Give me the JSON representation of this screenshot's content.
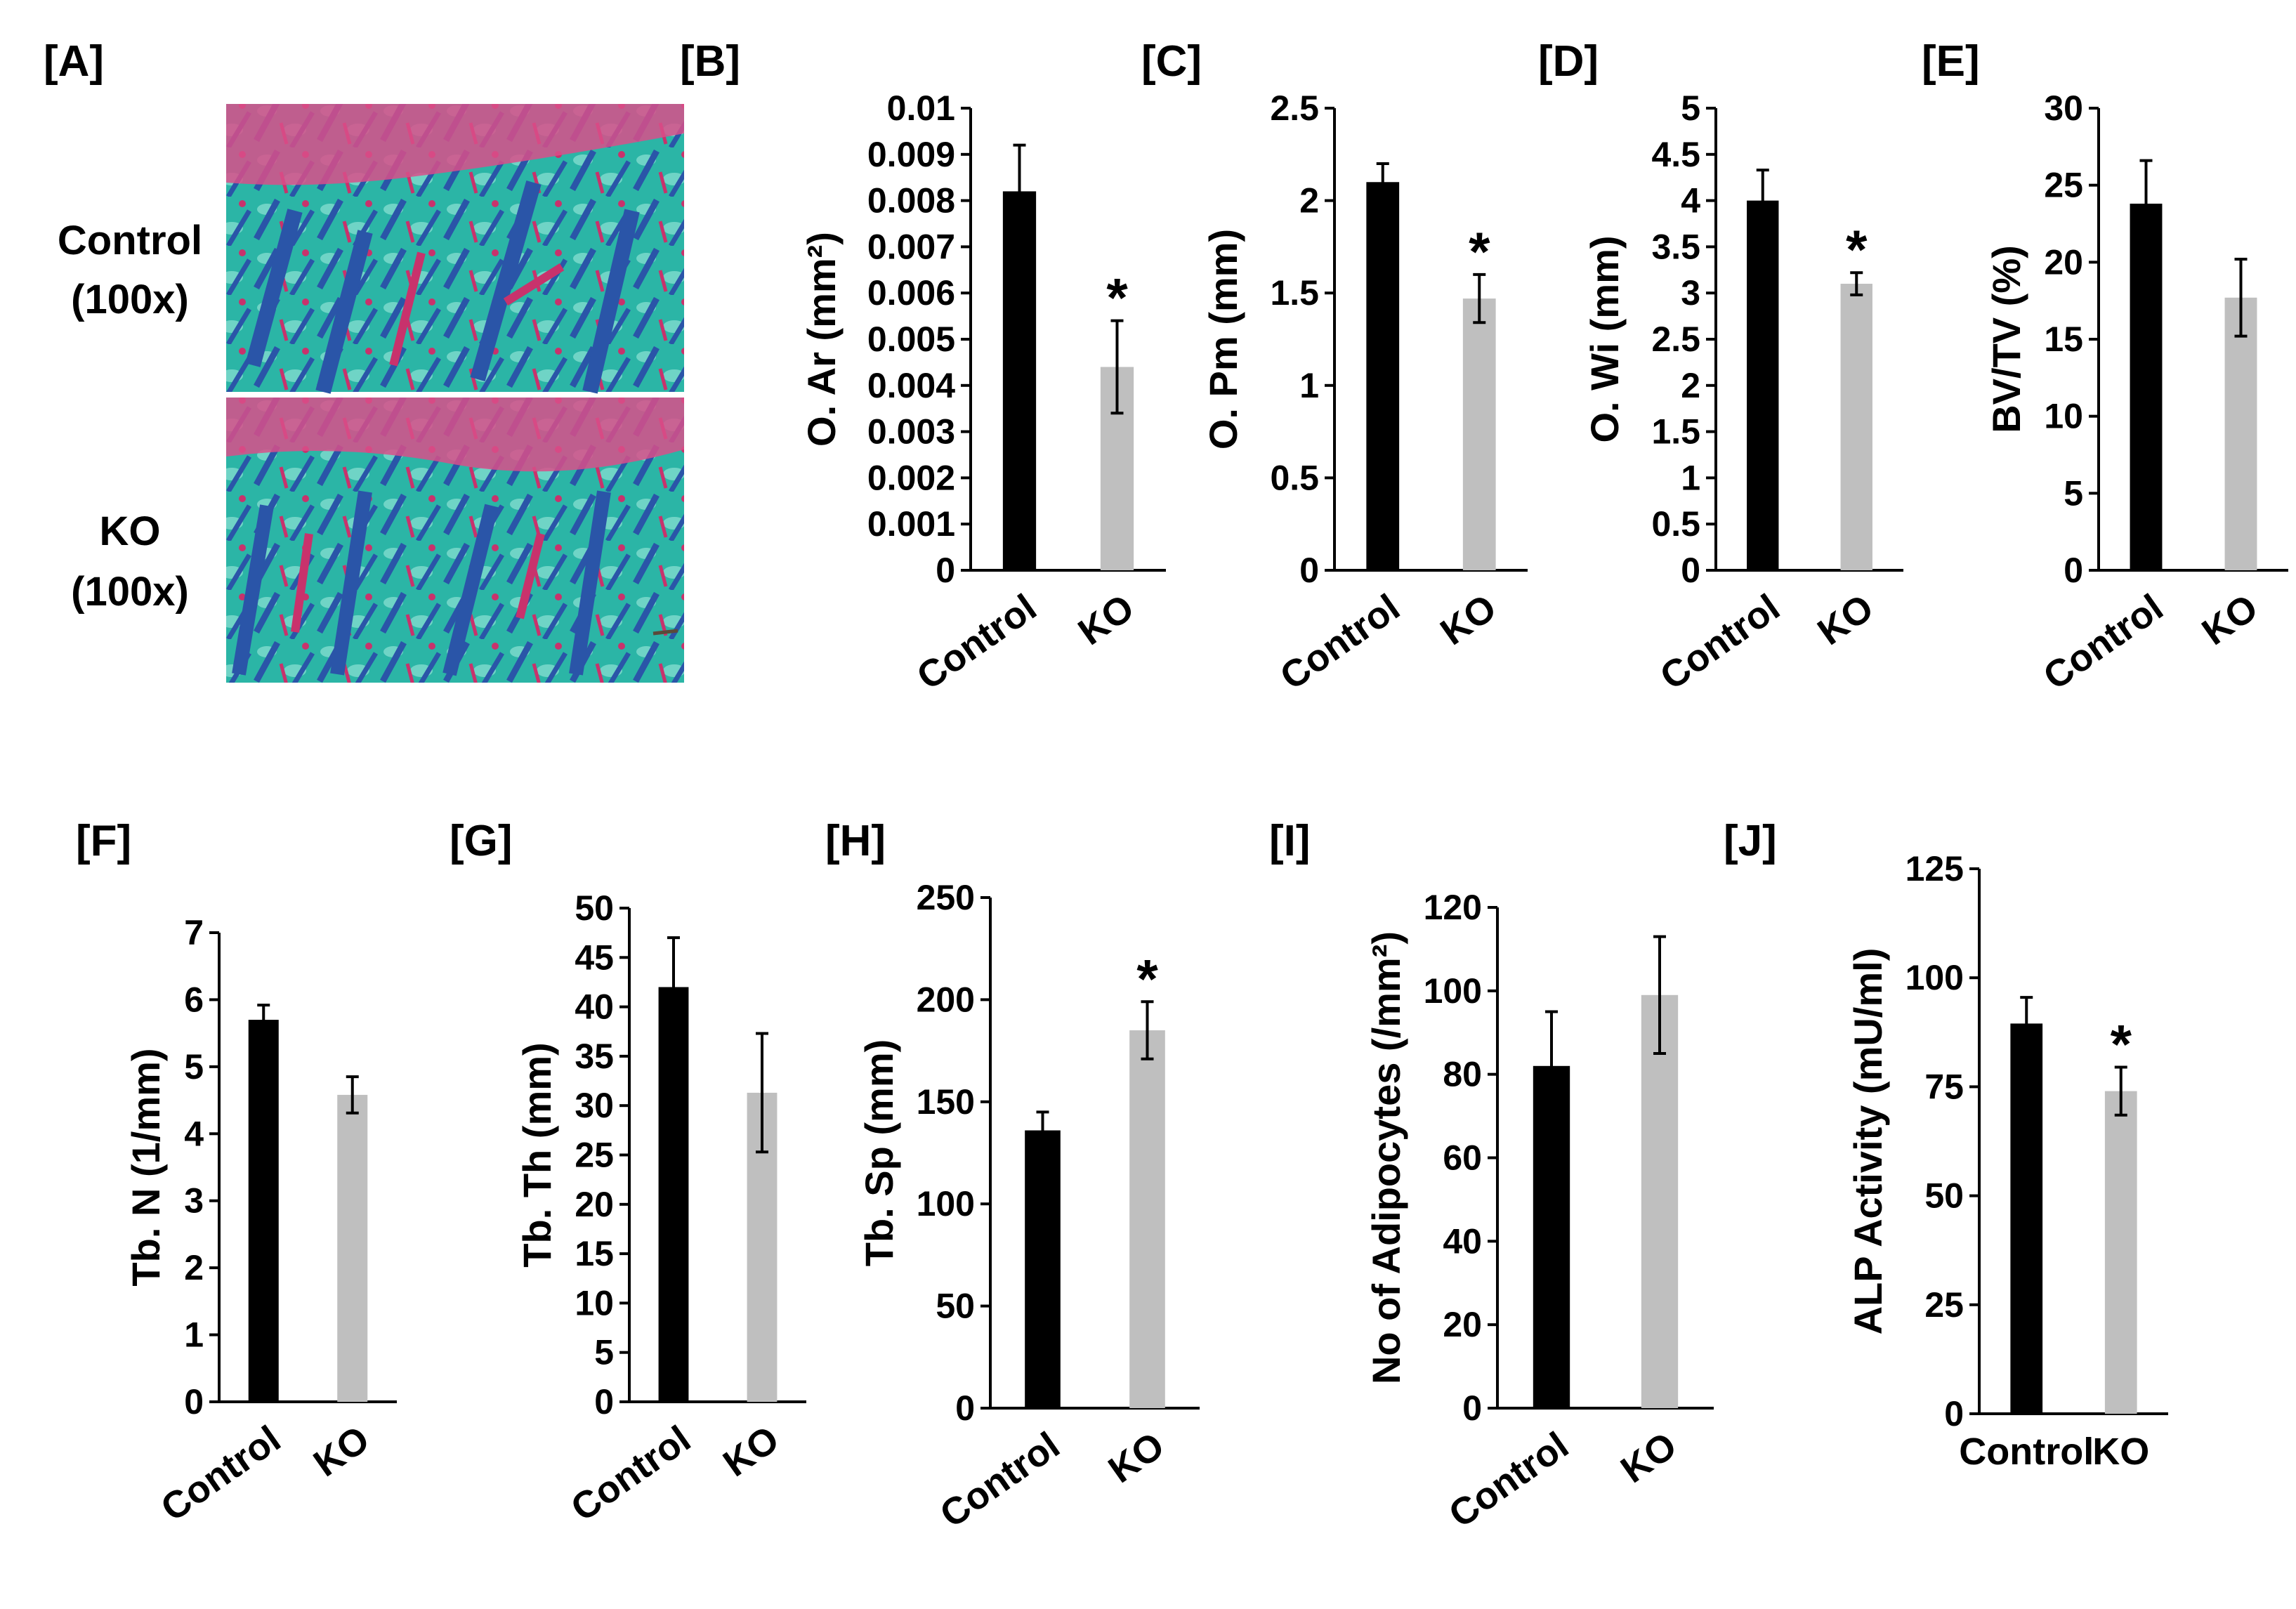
{
  "figure": {
    "panel_a": {
      "label": "[A]",
      "rows": [
        {
          "name": "Control",
          "magnification": "(100x)"
        },
        {
          "name": "KO",
          "magnification": "(100x)"
        }
      ]
    }
  },
  "colors": {
    "control_bar": "#000000",
    "ko_bar": "#bfbfbf",
    "stain_green": "#2bb5a6",
    "stain_blue": "#2a55a8",
    "stain_red": "#c8326c"
  },
  "chart_data": [
    {
      "label": "[B]",
      "type": "bar",
      "categories": [
        "Control",
        "KO"
      ],
      "values": [
        0.0082,
        0.0044
      ],
      "errors": [
        0.001,
        0.001
      ],
      "significant": [
        false,
        true
      ],
      "ylabel": "O. Ar (mm²)",
      "ylim": [
        0,
        0.01
      ],
      "ticks": [
        0,
        0.001,
        0.002,
        0.003,
        0.004,
        0.005,
        0.006,
        0.007,
        0.008,
        0.009,
        0.01
      ],
      "tick_labels": [
        "0",
        "0.001",
        "0.002",
        "0.003",
        "0.004",
        "0.005",
        "0.006",
        "0.007",
        "0.008",
        "0.009",
        "0.01"
      ],
      "label_rotation": -35
    },
    {
      "label": "[C]",
      "type": "bar",
      "categories": [
        "Control",
        "KO"
      ],
      "values": [
        2.1,
        1.47
      ],
      "errors": [
        0.1,
        0.13
      ],
      "significant": [
        false,
        true
      ],
      "ylabel": "O. Pm (mm)",
      "ylim": [
        0,
        2.5
      ],
      "ticks": [
        0,
        0.5,
        1,
        1.5,
        2,
        2.5
      ],
      "tick_labels": [
        "0",
        "0.5",
        "1",
        "1.5",
        "2",
        "2.5"
      ],
      "label_rotation": -35
    },
    {
      "label": "[D]",
      "type": "bar",
      "categories": [
        "Control",
        "KO"
      ],
      "values": [
        4.0,
        3.1
      ],
      "errors": [
        0.33,
        0.12
      ],
      "significant": [
        false,
        true
      ],
      "ylabel": "O. Wi (mm)",
      "ylim": [
        0,
        5
      ],
      "ticks": [
        0,
        0.5,
        1,
        1.5,
        2,
        2.5,
        3,
        3.5,
        4,
        4.5,
        5
      ],
      "tick_labels": [
        "0",
        "0.5",
        "1",
        "1.5",
        "2",
        "2.5",
        "3",
        "3.5",
        "4",
        "4.5",
        "5"
      ],
      "label_rotation": -35
    },
    {
      "label": "[E]",
      "type": "bar",
      "categories": [
        "Control",
        "KO"
      ],
      "values": [
        23.8,
        17.7
      ],
      "errors": [
        2.8,
        2.5
      ],
      "significant": [
        false,
        false
      ],
      "ylabel": "BV/TV (%)",
      "ylim": [
        0,
        30
      ],
      "ticks": [
        0,
        5,
        10,
        15,
        20,
        25,
        30
      ],
      "tick_labels": [
        "0",
        "5",
        "10",
        "15",
        "20",
        "25",
        "30"
      ],
      "label_rotation": -35
    },
    {
      "label": "[F]",
      "type": "bar",
      "categories": [
        "Control",
        "KO"
      ],
      "values": [
        5.7,
        4.58
      ],
      "errors": [
        0.22,
        0.27
      ],
      "significant": [
        false,
        false
      ],
      "ylabel": "Tb. N (1/mm)",
      "ylim": [
        0,
        7
      ],
      "ticks": [
        0,
        1,
        2,
        3,
        4,
        5,
        6,
        7
      ],
      "tick_labels": [
        "0",
        "1",
        "2",
        "3",
        "4",
        "5",
        "6",
        "7"
      ],
      "label_rotation": -35
    },
    {
      "label": "[G]",
      "type": "bar",
      "categories": [
        "Control",
        "KO"
      ],
      "values": [
        42,
        31.3
      ],
      "errors": [
        5,
        6
      ],
      "significant": [
        false,
        false
      ],
      "ylabel": "Tb. Th (mm)",
      "ylim": [
        0,
        50
      ],
      "ticks": [
        0,
        5,
        10,
        15,
        20,
        25,
        30,
        35,
        40,
        45,
        50
      ],
      "tick_labels": [
        "0",
        "5",
        "10",
        "15",
        "20",
        "25",
        "30",
        "35",
        "40",
        "45",
        "50"
      ],
      "label_rotation": -35
    },
    {
      "label": "[H]",
      "type": "bar",
      "categories": [
        "Control",
        "KO"
      ],
      "values": [
        136,
        185
      ],
      "errors": [
        9,
        14
      ],
      "significant": [
        false,
        true
      ],
      "ylabel": "Tb. Sp (mm)",
      "ylim": [
        0,
        250
      ],
      "ticks": [
        0,
        50,
        100,
        150,
        200,
        250
      ],
      "tick_labels": [
        "0",
        "50",
        "100",
        "150",
        "200",
        "250"
      ],
      "label_rotation": -35
    },
    {
      "label": "[I]",
      "type": "bar",
      "categories": [
        "Control",
        "KO"
      ],
      "values": [
        82,
        99
      ],
      "errors": [
        13,
        14
      ],
      "significant": [
        false,
        false
      ],
      "ylabel": "No of Adipocytes  (/mm²)",
      "ylim": [
        0,
        120
      ],
      "ticks": [
        0,
        20,
        40,
        60,
        80,
        100,
        120
      ],
      "tick_labels": [
        "0",
        "20",
        "40",
        "60",
        "80",
        "100",
        "120"
      ],
      "label_rotation": -35
    },
    {
      "label": "[J]",
      "type": "bar",
      "categories": [
        "Control",
        "KO"
      ],
      "values": [
        89.5,
        74
      ],
      "errors": [
        6,
        5.5
      ],
      "significant": [
        false,
        true
      ],
      "ylabel": "ALP Activity (mU/ml)",
      "ylim": [
        0,
        125
      ],
      "ticks": [
        0,
        25,
        50,
        75,
        100,
        125
      ],
      "tick_labels": [
        "0",
        "25",
        "50",
        "75",
        "100",
        "125"
      ],
      "label_rotation": 0
    }
  ]
}
